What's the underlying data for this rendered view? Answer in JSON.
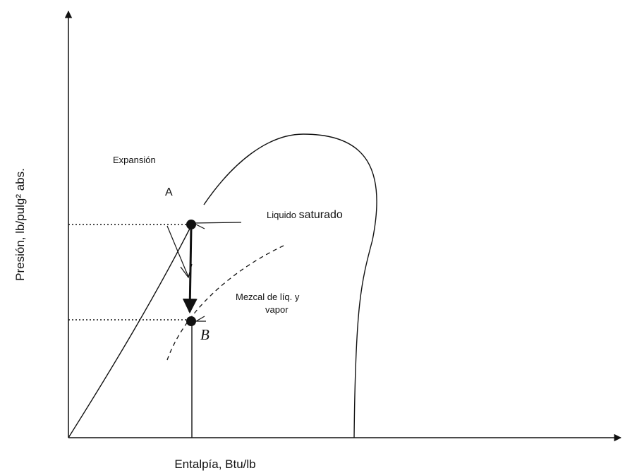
{
  "axes": {
    "x_label": "Entalpía, Btu/lb",
    "y_label": "Presión, lb/pulg² abs."
  },
  "labels": {
    "expansion": "Expansión",
    "point_a": "A",
    "point_b": "B",
    "liquid_small": "Liquido",
    "liquid_large": "saturado",
    "mixture_line1": "Mezcal de líq. y",
    "mixture_line2": "vapor"
  }
}
